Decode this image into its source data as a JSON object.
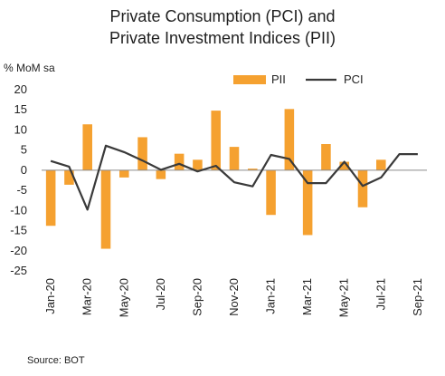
{
  "chart_data": {
    "type": "bar",
    "title_lines": [
      "Private Consumption (PCI) and",
      "Private Investment Indices (PII)"
    ],
    "unit_label": "% MoM sa",
    "source": "Source:  BOT",
    "x": [
      "Jan-20",
      "Feb-20",
      "Mar-20",
      "Apr-20",
      "May-20",
      "Jun-20",
      "Jul-20",
      "Aug-20",
      "Sep-20",
      "Oct-20",
      "Nov-20",
      "Dec-20",
      "Jan-21",
      "Feb-21",
      "Mar-21",
      "Apr-21",
      "May-21",
      "Jun-21",
      "Jul-21",
      "Aug-21",
      "Sep-21"
    ],
    "tick_labels": [
      {
        "index": 0,
        "label": "Jan-20"
      },
      {
        "index": 2,
        "label": "Mar-20"
      },
      {
        "index": 4,
        "label": "May-20"
      },
      {
        "index": 6,
        "label": "Jul-20"
      },
      {
        "index": 8,
        "label": "Sep-20"
      },
      {
        "index": 10,
        "label": "Nov-20"
      },
      {
        "index": 12,
        "label": "Jan-21"
      },
      {
        "index": 14,
        "label": "Mar-21"
      },
      {
        "index": 16,
        "label": "May-21"
      },
      {
        "index": 18,
        "label": "Jul-21"
      },
      {
        "index": 20,
        "label": "Sep-21"
      }
    ],
    "ylim": [
      -25,
      20
    ],
    "yticks": [
      20,
      15,
      10,
      5,
      0,
      -5,
      -10,
      -15,
      -20,
      -25
    ],
    "grid": false,
    "legend_position": "top-right",
    "series": [
      {
        "name": "PII",
        "type": "bar",
        "color": "#F5A130",
        "values": [
          -13.8,
          -3.6,
          11.4,
          -19.5,
          -1.8,
          8.2,
          -2.2,
          4.1,
          2.6,
          14.8,
          5.8,
          0.4,
          -11.1,
          15.2,
          -16.1,
          6.5,
          2.1,
          -9.2,
          2.6,
          0,
          0
        ]
      },
      {
        "name": "PCI",
        "type": "line",
        "color": "#3a3a3a",
        "values": [
          2.3,
          0.9,
          -9.8,
          6.1,
          4.5,
          2.4,
          0.1,
          1.6,
          -0.3,
          1.1,
          -3.0,
          -4.0,
          3.8,
          2.8,
          -3.2,
          -3.2,
          2.1,
          -3.9,
          -1.8,
          4.0,
          4.0
        ]
      }
    ]
  }
}
